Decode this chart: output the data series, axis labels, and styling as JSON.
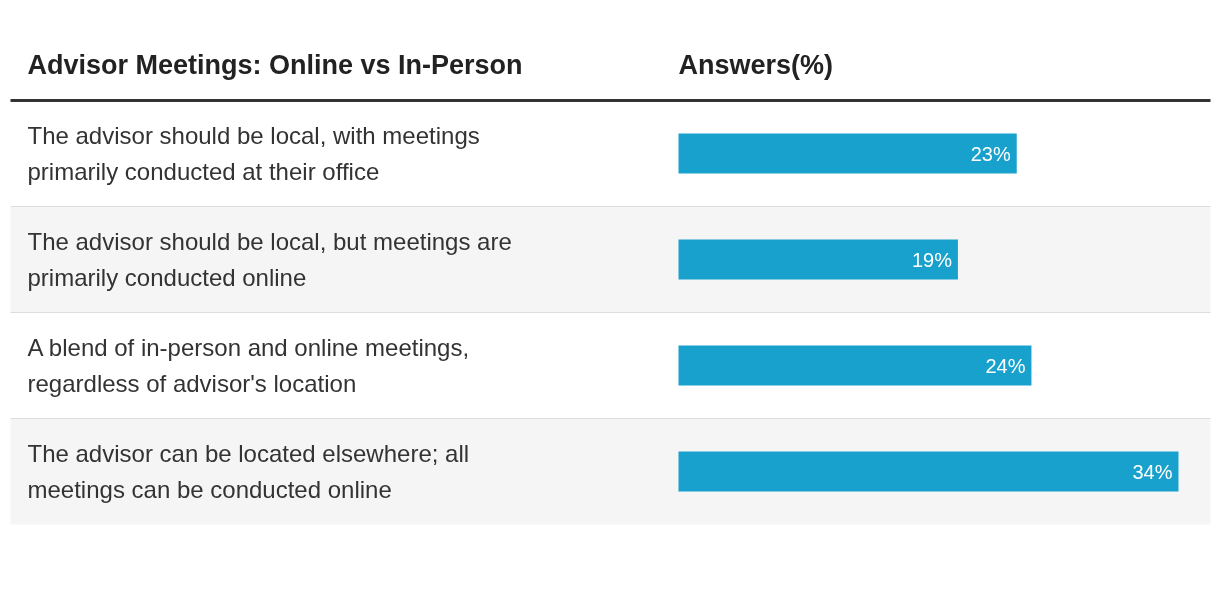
{
  "chart_data": {
    "type": "bar",
    "orientation": "horizontal",
    "ylabel": "Advisor Meetings: Online vs In-Person",
    "xlabel": "Answers(%)",
    "categories": [
      "The advisor should be local, with meetings primarily conducted at their office",
      "The advisor should be local, but meetings are primarily conducted online",
      "A blend of in-person and online meetings, regardless of advisor's location",
      "The advisor can be located elsewhere; all meetings can be conducted online"
    ],
    "values": [
      23,
      19,
      24,
      34
    ],
    "color": "#18a1cd",
    "value_labels": [
      "23%",
      "19%",
      "24%",
      "34%"
    ],
    "grid": false
  }
}
